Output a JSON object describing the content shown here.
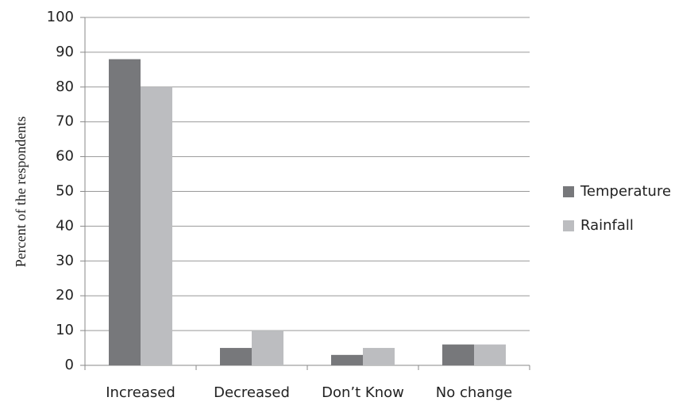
{
  "chart_data": {
    "type": "bar",
    "y_label": "Percent of the respondents",
    "categories": [
      "Increased",
      "Decreased",
      "Don’t Know",
      "No change"
    ],
    "series": [
      {
        "name": "Temperature",
        "color": "#77787b",
        "values": [
          88,
          5,
          3,
          6
        ]
      },
      {
        "name": "Rainfall",
        "color": "#bcbdc0",
        "values": [
          80,
          10,
          5,
          6
        ]
      }
    ],
    "ylim": [
      0,
      100
    ],
    "yticks": [
      0,
      10,
      20,
      30,
      40,
      50,
      60,
      70,
      80,
      90,
      100
    ],
    "grid": true,
    "legend": "right"
  }
}
